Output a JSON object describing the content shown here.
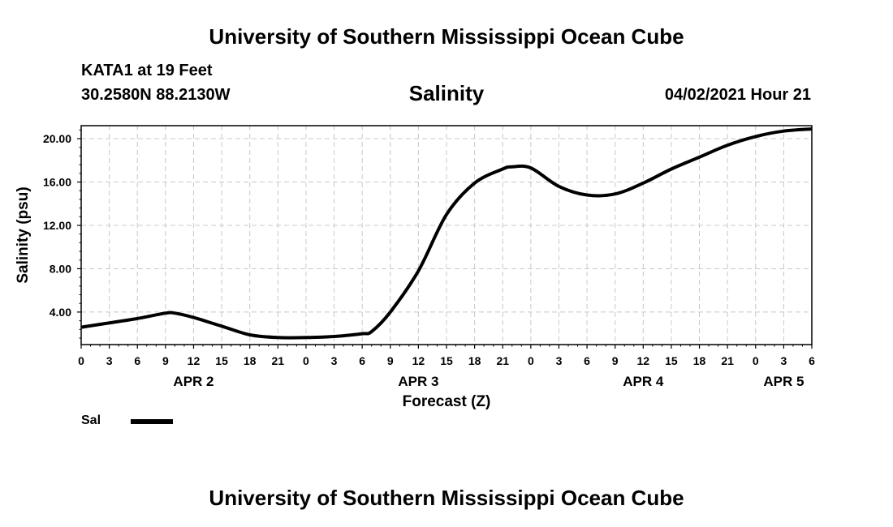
{
  "header": {
    "title": "University of Southern Mississippi Ocean Cube",
    "station": "KATA1 at 19 Feet",
    "coordinates": "30.2580N  88.2130W",
    "variable": "Salinity",
    "datetime": "04/02/2021 Hour 21"
  },
  "footer": {
    "title": "University of Southern Mississippi Ocean Cube"
  },
  "legend": {
    "label": "Sal",
    "color": "#000000"
  },
  "chart_data": {
    "type": "line",
    "title": "Salinity",
    "xlabel": "Forecast (Z)",
    "ylabel": "Salinity (psu)",
    "xlim": [
      0,
      78
    ],
    "ylim": [
      1.0,
      21.2
    ],
    "grid": true,
    "x_ticks": [
      0,
      3,
      6,
      9,
      12,
      15,
      18,
      21,
      24,
      27,
      30,
      33,
      36,
      39,
      42,
      45,
      48,
      51,
      54,
      57,
      60,
      63,
      66,
      69,
      72,
      75,
      78
    ],
    "x_tick_labels": [
      "0",
      "3",
      "6",
      "9",
      "12",
      "15",
      "18",
      "21",
      "0",
      "3",
      "6",
      "9",
      "12",
      "15",
      "18",
      "21",
      "0",
      "3",
      "6",
      "9",
      "12",
      "15",
      "18",
      "21",
      "0",
      "3",
      "6"
    ],
    "y_ticks": [
      4,
      8,
      12,
      16,
      20
    ],
    "y_tick_labels": [
      "4.00",
      "8.00",
      "12.00",
      "16.00",
      "20.00"
    ],
    "date_labels": [
      {
        "label": "APR 2",
        "x": 12
      },
      {
        "label": "APR 3",
        "x": 36
      },
      {
        "label": "APR 4",
        "x": 60
      },
      {
        "label": "APR 5",
        "x": 75
      }
    ],
    "series": [
      {
        "name": "Sal",
        "x": [
          0,
          3,
          6,
          9,
          10,
          12,
          15,
          18,
          21,
          24,
          27,
          30,
          31,
          33,
          36,
          39,
          42,
          45,
          46,
          48,
          51,
          54,
          57,
          60,
          63,
          66,
          69,
          72,
          75,
          78
        ],
        "values": [
          2.6,
          3.0,
          3.4,
          3.9,
          3.9,
          3.5,
          2.7,
          1.9,
          1.65,
          1.65,
          1.75,
          2.0,
          2.2,
          4.0,
          7.8,
          13.0,
          15.9,
          17.2,
          17.4,
          17.3,
          15.6,
          14.8,
          14.9,
          15.9,
          17.2,
          18.3,
          19.4,
          20.2,
          20.7,
          20.9
        ]
      }
    ]
  }
}
